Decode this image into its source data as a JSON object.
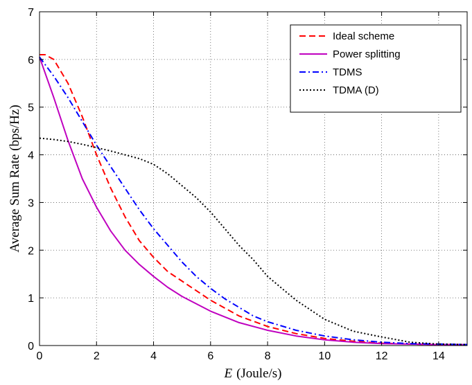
{
  "chart_data": {
    "type": "line",
    "title": "",
    "xlabel": "(Joule/s)",
    "xlabel_var": "E",
    "ylabel": "Average Sum Rate (bps/Hz)",
    "xlim": [
      0,
      15
    ],
    "ylim": [
      0,
      7
    ],
    "xticks": [
      0,
      2,
      4,
      6,
      8,
      10,
      12,
      14
    ],
    "yticks": [
      0,
      1,
      2,
      3,
      4,
      5,
      6,
      7
    ],
    "grid": true,
    "legend_position": "top-right",
    "series": [
      {
        "name": "Ideal scheme",
        "color": "#ff0000",
        "style": "dashed",
        "x": [
          0,
          0.2,
          0.5,
          1,
          1.5,
          2,
          2.5,
          3,
          3.5,
          4,
          4.5,
          5,
          6,
          7,
          8,
          9,
          10,
          11,
          12,
          13,
          14,
          15
        ],
        "y": [
          6.1,
          6.1,
          6.0,
          5.5,
          4.8,
          4.0,
          3.3,
          2.7,
          2.2,
          1.85,
          1.55,
          1.35,
          0.95,
          0.62,
          0.4,
          0.25,
          0.15,
          0.09,
          0.05,
          0.03,
          0.02,
          0.02
        ]
      },
      {
        "name": "Power splitting",
        "color": "#bf00bf",
        "style": "solid",
        "x": [
          0,
          0.5,
          1,
          1.5,
          2,
          2.5,
          3,
          3.5,
          4,
          4.5,
          5,
          6,
          7,
          8,
          9,
          10,
          11,
          12,
          13,
          14,
          15
        ],
        "y": [
          6.05,
          5.2,
          4.3,
          3.5,
          2.9,
          2.4,
          2.0,
          1.7,
          1.45,
          1.22,
          1.03,
          0.72,
          0.48,
          0.32,
          0.2,
          0.12,
          0.07,
          0.04,
          0.03,
          0.02,
          0.02
        ]
      },
      {
        "name": "TDMS",
        "color": "#0000ff",
        "style": "dash-dot",
        "x": [
          0,
          0.5,
          1,
          1.5,
          2,
          2.5,
          3,
          3.5,
          4,
          4.5,
          5,
          5.5,
          6,
          6.5,
          7,
          7.5,
          8,
          9,
          10,
          11,
          12,
          13,
          14,
          15
        ],
        "y": [
          6.05,
          5.65,
          5.2,
          4.7,
          4.2,
          3.75,
          3.3,
          2.85,
          2.45,
          2.1,
          1.75,
          1.45,
          1.2,
          0.98,
          0.8,
          0.62,
          0.5,
          0.32,
          0.2,
          0.12,
          0.07,
          0.04,
          0.03,
          0.02
        ]
      },
      {
        "name": "TDMA (D)",
        "color": "#000000",
        "style": "dotted",
        "x": [
          0,
          0.5,
          1,
          1.5,
          2,
          2.5,
          3,
          3.5,
          4,
          4.5,
          5,
          5.5,
          6,
          6.5,
          7,
          7.5,
          8,
          8.5,
          9,
          9.5,
          10,
          11,
          12,
          13,
          14,
          15
        ],
        "y": [
          4.35,
          4.32,
          4.28,
          4.22,
          4.15,
          4.08,
          4.0,
          3.92,
          3.8,
          3.6,
          3.35,
          3.1,
          2.8,
          2.45,
          2.1,
          1.8,
          1.45,
          1.2,
          0.95,
          0.75,
          0.55,
          0.3,
          0.18,
          0.07,
          0.03,
          0.02
        ]
      }
    ]
  }
}
